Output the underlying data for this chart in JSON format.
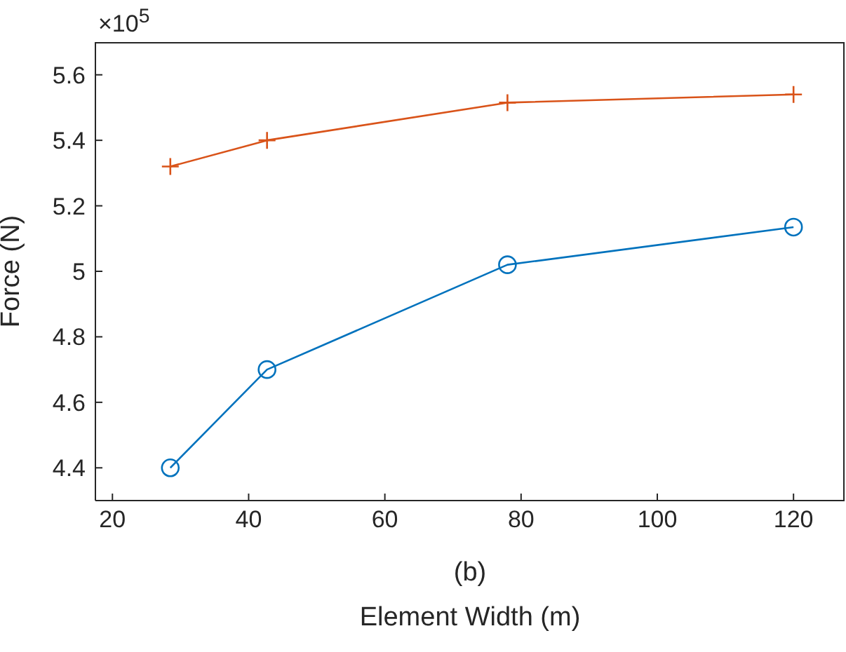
{
  "chart_data": {
    "type": "line",
    "xlabel": "Element Width (m)",
    "ylabel": "Force (N)",
    "annotations": [
      "×10$^{5}$",
      "(b)"
    ],
    "x": [
      28.5,
      42.7,
      78,
      120
    ],
    "series": [
      {
        "color": "#d95319",
        "marker": "cross",
        "values": [
          5.32,
          5.4,
          5.515,
          5.54
        ]
      },
      {
        "color": "#0072bd",
        "marker": "circle",
        "values": [
          4.4,
          4.7,
          5.02,
          5.135
        ]
      }
    ],
    "xlim": [
      17.5,
      127.5
    ],
    "xticks": [
      20,
      40,
      60,
      80,
      100,
      120
    ],
    "ylim": [
      4.3,
      5.7
    ],
    "yticks": [
      4.4,
      4.6,
      4.8,
      5,
      5.2,
      5.4,
      5.6
    ],
    "grid": false,
    "legend": false,
    "line_style": "solid"
  }
}
